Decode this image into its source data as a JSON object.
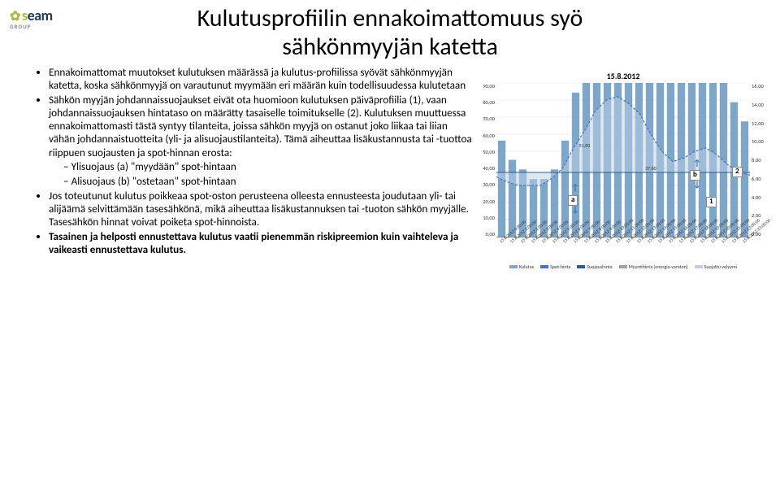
{
  "logo": {
    "brand_s": "s",
    "brand_eam": "eam",
    "sub": "GROUP"
  },
  "title_line1": "Kulutusprofiilin ennakoimattomuus syö",
  "title_line2": "sähkönmyyjän katetta",
  "bullets": {
    "b1": "Ennakoimattomat muutokset kulutuksen määrässä ja kulutus-profiilissa syövät sähkönmyyjän katetta, koska sähkönmyyjä on varautunut myymään eri määrän kuin todellisuudessa kulutetaan",
    "b2": "Sähkön myyjän johdannaissuojaukset eivät ota huomioon kulutuksen päiväprofiilia (1), vaan johdannaissuojauksen hintataso on määrätty tasaiselle toimitukselle (2). Kulutuksen muuttuessa ennakoimattomasti tästä syntyy tilanteita, joissa sähkön myyjä on ostanut joko liikaa tai liian vähän johdannaistuotteita (yli- ja alisuojaustilanteita). Tämä aiheuttaa lisäkustannusta tai -tuottoa riippuen suojausten ja spot-hinnan erosta:",
    "b2a": "Ylisuojaus  (a) \"myydään\" spot-hintaan",
    "b2b": "Alisuojaus  (b) \"ostetaan\" spot-hintaan",
    "b3": "Jos toteutunut kulutus poikkeaa spot-oston perusteena olleesta ennusteesta joudutaan yli- tai alijäämä selvittämään tasesähkönä, mikä aiheuttaa lisäkustannuksen tai  -tuoton sähkön myyjälle. Tasesähkön hinnat voivat poiketa spot-hinnoista.",
    "b4": "Tasainen ja  helposti ennustettava kulutus vaatii pienemmän riskipreemion kuin vaihteleva ja vaikeasti ennustettava kulutus."
  },
  "chart": {
    "date_label": "15.8.2012",
    "y_left": [
      "90,00",
      "80,00",
      "70,00",
      "60,00",
      "50,00",
      "40,00",
      "30,00",
      "20,00",
      "10,00",
      "0,00"
    ],
    "y_right": [
      "16,00",
      "14,00",
      "12,00",
      "10,00",
      "8,00",
      "6,00",
      "4,00",
      "2,00",
      "0,00"
    ],
    "y_left_max": 90,
    "y_right_max": 16,
    "bars": [
      10,
      8,
      7,
      6,
      6,
      7,
      10,
      15,
      18,
      20,
      20,
      21,
      21,
      20,
      20,
      19,
      20,
      22,
      23,
      22,
      20,
      18,
      14,
      12
    ],
    "spot_line": [
      35,
      32,
      30,
      30,
      30,
      34,
      40,
      52,
      62,
      74,
      80,
      82,
      78,
      72,
      60,
      50,
      44,
      46,
      50,
      52,
      48,
      42,
      38,
      36
    ],
    "suoja_level": 37.6,
    "val_label_a": "51,00",
    "val_label_b": "37,60",
    "hours": [
      "0:00:00",
      "1:00:00",
      "2:00:00",
      "3:00:00",
      "4:00:00",
      "5:00:00",
      "6:00:00",
      "7:00:00",
      "8:00:00",
      "9:00:00",
      "10:00:00",
      "11:00:00",
      "12:00:00",
      "13:00:00",
      "14:00:00",
      "15:00:00",
      "16:00:00",
      "17:00:00",
      "18:00:00",
      "19:00:00",
      "20:00:00",
      "21:00:00",
      "22:00:00",
      "23:00:00"
    ],
    "x_prefix": "15.8.2012 ",
    "legend": {
      "l1": "Kulutus",
      "l2": "Spot-hinta",
      "l3": "Suojaushinta",
      "l4": "Myyntihinta (energia-varaton)",
      "l5": "Suojattu volyymi"
    },
    "annot": {
      "a": "a",
      "b": "b",
      "n1": "1",
      "n2": "2"
    },
    "colors": {
      "bar": "#7ea6c9",
      "spot": "#4472c4",
      "area": "#bdd0e6",
      "suoja": "#2f5c8a",
      "grid": "#e0e0e0"
    }
  }
}
